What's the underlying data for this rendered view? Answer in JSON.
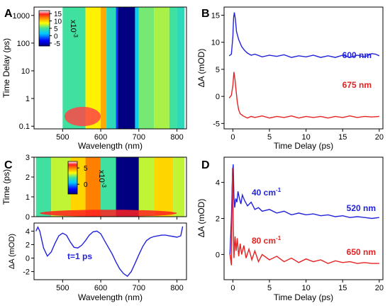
{
  "panels": {
    "A": {
      "letter": "A"
    },
    "B": {
      "letter": "B"
    },
    "C": {
      "letter": "C"
    },
    "D": {
      "letter": "D"
    }
  },
  "chart_data": [
    {
      "panel": "A",
      "type": "heatmap",
      "xlabel": "Wavelength (nm)",
      "ylabel": "Time Delay (ps)",
      "xticks": [
        500,
        600,
        700,
        800
      ],
      "xlim": [
        425,
        825
      ],
      "yscale": "log",
      "yticks": [
        0.1,
        1,
        10,
        100,
        1000
      ],
      "ytick_labels": [
        "0.1",
        "1",
        "10",
        "100",
        "1000"
      ],
      "ylim": [
        0.08,
        2000
      ],
      "colorbar": {
        "ticks": [
          15,
          10,
          5,
          0,
          -5
        ],
        "range": [
          -7,
          17
        ],
        "scale_label": "x10",
        "scale_exp": "-3"
      },
      "bands": [
        {
          "start": 500,
          "end": 560,
          "level": 5
        },
        {
          "start": 560,
          "end": 600,
          "level": 9
        },
        {
          "start": 600,
          "end": 615,
          "level": 11
        },
        {
          "start": 615,
          "end": 640,
          "level": 4
        },
        {
          "start": 640,
          "end": 645,
          "level": -2
        },
        {
          "start": 645,
          "end": 690,
          "level": -7
        },
        {
          "start": 690,
          "end": 700,
          "level": 2
        },
        {
          "start": 700,
          "end": 740,
          "level": 6
        },
        {
          "start": 740,
          "end": 780,
          "level": 7
        },
        {
          "start": 780,
          "end": 800,
          "level": 5
        },
        {
          "start": 800,
          "end": 820,
          "level": 4
        }
      ],
      "hot_spot": {
        "x_range": [
          505,
          600
        ],
        "t_range": [
          0.1,
          0.5
        ],
        "level": 15
      }
    },
    {
      "panel": "B",
      "type": "line",
      "xlabel": "Time Delay (ps)",
      "ylabel": "ΔA (mOD)",
      "xlim": [
        -1.2,
        20.5
      ],
      "ylim": [
        -6,
        16.5
      ],
      "xticks": [
        0,
        5,
        10,
        15,
        20
      ],
      "yticks": [
        -5,
        0,
        5,
        10,
        15
      ],
      "series": [
        {
          "name": "600 nm",
          "color": "#2222dd",
          "x": [
            -0.5,
            -0.2,
            0.0,
            0.1,
            0.2,
            0.35,
            0.5,
            0.8,
            1.2,
            1.6,
            2.0,
            2.5,
            3.0,
            4.0,
            5.0,
            6.0,
            7.0,
            8.0,
            9.0,
            10.0,
            11.0,
            12.0,
            13.0,
            14.0,
            15.0,
            16.0,
            17.0,
            18.0,
            19.0,
            19.5,
            20.0
          ],
          "y": [
            7.5,
            7.8,
            11.0,
            14.5,
            15.5,
            14.2,
            12.0,
            10.5,
            9.2,
            8.5,
            8.0,
            7.6,
            7.8,
            7.3,
            7.6,
            7.4,
            7.7,
            7.2,
            7.5,
            7.3,
            7.6,
            7.2,
            7.5,
            7.2,
            7.6,
            7.2,
            7.6,
            7.3,
            7.9,
            7.8,
            7.5
          ]
        },
        {
          "name": "675 nm",
          "color": "#e52222",
          "x": [
            -0.5,
            -0.2,
            0.0,
            0.15,
            0.3,
            0.45,
            0.6,
            0.8,
            1.0,
            1.4,
            2.0,
            2.5,
            3.0,
            4.0,
            5.0,
            6.0,
            7.0,
            8.0,
            9.0,
            10.0,
            11.0,
            12.0,
            13.0,
            14.0,
            15.0,
            16.0,
            17.0,
            18.0,
            19.0,
            20.0
          ],
          "y": [
            -0.3,
            0.2,
            2.0,
            4.5,
            3.0,
            1.0,
            -1.0,
            -2.5,
            -3.2,
            -3.6,
            -4.0,
            -3.7,
            -3.9,
            -3.6,
            -4.0,
            -3.7,
            -3.9,
            -3.6,
            -4.0,
            -3.7,
            -3.9,
            -3.7,
            -4.0,
            -3.7,
            -3.9,
            -3.6,
            -3.9,
            -3.7,
            -3.8,
            -3.7
          ]
        }
      ]
    },
    {
      "panel": "C-top",
      "type": "heatmap",
      "ylabel": "Time (ps)",
      "xlim": [
        425,
        825
      ],
      "ylim": [
        0,
        3
      ],
      "yticks": [
        0,
        1,
        2,
        3
      ],
      "colorbar": {
        "ticks": [
          5,
          0
        ],
        "range": [
          -3,
          7
        ],
        "scale_label": "x10",
        "scale_exp": "-3"
      },
      "bands": [
        {
          "start": 430,
          "end": 470,
          "level": 2
        },
        {
          "start": 470,
          "end": 520,
          "level": 3
        },
        {
          "start": 520,
          "end": 560,
          "level": 4
        },
        {
          "start": 560,
          "end": 600,
          "level": 5
        },
        {
          "start": 600,
          "end": 640,
          "level": 2
        },
        {
          "start": 640,
          "end": 700,
          "level": -3
        },
        {
          "start": 700,
          "end": 740,
          "level": 3
        },
        {
          "start": 740,
          "end": 790,
          "level": 4
        },
        {
          "start": 790,
          "end": 820,
          "level": 3
        }
      ],
      "hot_spot": {
        "x_range": [
          440,
          800
        ],
        "t_range": [
          0,
          0.35
        ],
        "level": 6
      }
    },
    {
      "panel": "C-bottom",
      "type": "line",
      "xlabel": "Wavelength (nm)",
      "ylabel": "ΔA (mOD)",
      "xlim": [
        425,
        825
      ],
      "ylim": [
        -3.2,
        5.2
      ],
      "xticks": [
        500,
        600,
        700,
        800
      ],
      "yticks": [
        -2,
        0,
        2,
        4
      ],
      "annotation": "t=1 ps",
      "series": [
        {
          "color": "#2222dd",
          "x": [
            430,
            435,
            440,
            450,
            460,
            470,
            480,
            490,
            500,
            510,
            520,
            530,
            540,
            550,
            560,
            570,
            580,
            590,
            600,
            610,
            620,
            630,
            640,
            650,
            660,
            670,
            680,
            690,
            700,
            710,
            720,
            730,
            740,
            750,
            760,
            770,
            780,
            790,
            800,
            810,
            815
          ],
          "y": [
            4.0,
            4.6,
            4.0,
            1.5,
            0.3,
            0.9,
            2.2,
            3.3,
            3.7,
            3.4,
            2.4,
            1.6,
            1.5,
            1.9,
            2.6,
            3.4,
            3.9,
            4.0,
            3.6,
            2.6,
            1.6,
            0.6,
            -0.6,
            -1.6,
            -2.3,
            -2.7,
            -2.0,
            -0.8,
            0.5,
            1.7,
            2.6,
            3.0,
            3.2,
            3.3,
            3.4,
            3.4,
            3.3,
            3.2,
            3.1,
            3.3,
            4.7
          ]
        }
      ]
    },
    {
      "panel": "D",
      "type": "line",
      "xlabel": "Time Delay (ps)",
      "ylabel": "ΔA (mOD)",
      "xlim": [
        -1.2,
        20.5
      ],
      "ylim": [
        -1.4,
        5.4
      ],
      "xticks": [
        0,
        5,
        10,
        15,
        20
      ],
      "yticks": [
        0,
        2,
        4
      ],
      "annotations": [
        {
          "text": "40 cm",
          "sup": "-1",
          "color": "#2222dd"
        },
        {
          "text": "80 cm",
          "sup": "-1",
          "color": "#e52222"
        }
      ],
      "series": [
        {
          "name": "520 nm",
          "color": "#2222dd",
          "x": [
            -0.4,
            -0.2,
            -0.05,
            0.05,
            0.15,
            0.25,
            0.4,
            0.55,
            0.7,
            0.9,
            1.1,
            1.3,
            1.6,
            2.0,
            2.5,
            3.0,
            3.5,
            4.0,
            5.0,
            6.0,
            7.0,
            8.0,
            9.0,
            10.0,
            11.0,
            12.0,
            13.0,
            14.0,
            15.0,
            16.0,
            17.0,
            18.0,
            19.0,
            20.0
          ],
          "y": [
            0.0,
            2.0,
            4.5,
            5.0,
            3.2,
            2.6,
            3.1,
            2.9,
            3.5,
            3.1,
            2.8,
            3.3,
            3.0,
            2.7,
            2.9,
            2.5,
            2.6,
            2.4,
            2.5,
            2.3,
            2.4,
            2.2,
            2.3,
            2.2,
            2.25,
            2.15,
            2.2,
            2.1,
            2.15,
            2.05,
            2.1,
            2.05,
            2.0,
            2.05
          ]
        },
        {
          "name": "650 nm",
          "color": "#e52222",
          "x": [
            -0.4,
            -0.2,
            -0.05,
            0.05,
            0.15,
            0.3,
            0.45,
            0.6,
            0.8,
            1.0,
            1.2,
            1.5,
            1.8,
            2.2,
            2.6,
            3.0,
            3.5,
            4.0,
            5.0,
            6.0,
            7.0,
            8.0,
            9.0,
            10.0,
            11.0,
            12.0,
            13.0,
            14.0,
            15.0,
            16.0,
            17.0,
            18.0,
            19.0,
            20.0
          ],
          "y": [
            0.0,
            -0.6,
            4.8,
            2.0,
            -0.2,
            1.0,
            0.2,
            0.9,
            -0.1,
            0.6,
            0.0,
            0.5,
            -0.2,
            0.3,
            -0.3,
            0.2,
            -0.4,
            0.0,
            -0.3,
            -0.1,
            -0.4,
            -0.2,
            -0.45,
            -0.25,
            -0.4,
            -0.3,
            -0.5,
            -0.35,
            -0.45,
            -0.4,
            -0.5,
            -0.45,
            -0.5,
            -0.5
          ]
        }
      ]
    }
  ]
}
